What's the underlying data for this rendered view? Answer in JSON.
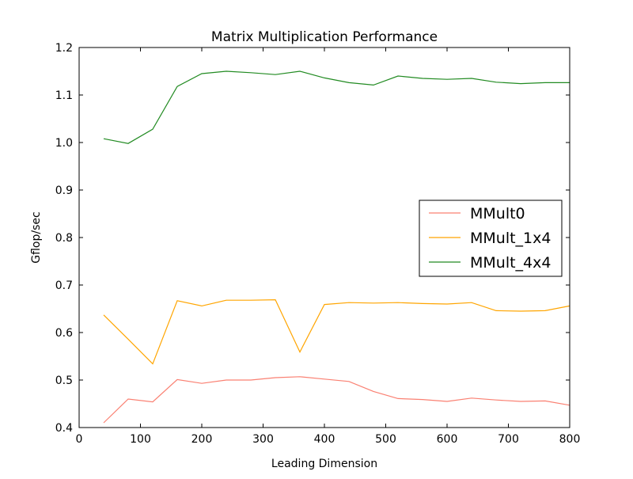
{
  "chart_data": {
    "type": "line",
    "title": "Matrix Multiplication Performance",
    "xlabel": "Leading Dimension",
    "ylabel": "Gflop/sec",
    "xlim": [
      0,
      800
    ],
    "ylim": [
      0.4,
      1.2
    ],
    "xticks": [
      0,
      100,
      200,
      300,
      400,
      500,
      600,
      700,
      800
    ],
    "xtick_labels": [
      "0",
      "100",
      "200",
      "300",
      "400",
      "500",
      "600",
      "700",
      "800"
    ],
    "yticks": [
      0.4,
      0.5,
      0.6,
      0.7,
      0.8,
      0.9,
      1.0,
      1.1,
      1.2
    ],
    "ytick_labels": [
      "0.4",
      "0.5",
      "0.6",
      "0.7",
      "0.8",
      "0.9",
      "1.0",
      "1.1",
      "1.2"
    ],
    "grid": false,
    "legend_position": "center-right",
    "x": [
      40,
      80,
      120,
      160,
      200,
      240,
      280,
      320,
      360,
      400,
      440,
      480,
      520,
      560,
      600,
      640,
      680,
      720,
      760,
      800
    ],
    "series": [
      {
        "name": "MMult0",
        "color": "#fa8072",
        "values": [
          0.41,
          0.46,
          0.454,
          0.501,
          0.493,
          0.5,
          0.5,
          0.505,
          0.507,
          0.502,
          0.497,
          0.476,
          0.461,
          0.459,
          0.455,
          0.462,
          0.458,
          0.455,
          0.456,
          0.447
        ]
      },
      {
        "name": "MMult_1x4",
        "color": "#ffa500",
        "values": [
          0.637,
          0.586,
          0.534,
          0.667,
          0.656,
          0.668,
          0.668,
          0.669,
          0.559,
          0.659,
          0.663,
          0.662,
          0.663,
          0.661,
          0.66,
          0.663,
          0.646,
          0.645,
          0.646,
          0.656
        ]
      },
      {
        "name": "MMult_4x4",
        "color": "#228b22",
        "values": [
          1.008,
          0.998,
          1.028,
          1.118,
          1.145,
          1.15,
          1.147,
          1.143,
          1.15,
          1.136,
          1.126,
          1.121,
          1.14,
          1.135,
          1.133,
          1.135,
          1.127,
          1.124,
          1.126,
          1.126
        ]
      }
    ]
  }
}
